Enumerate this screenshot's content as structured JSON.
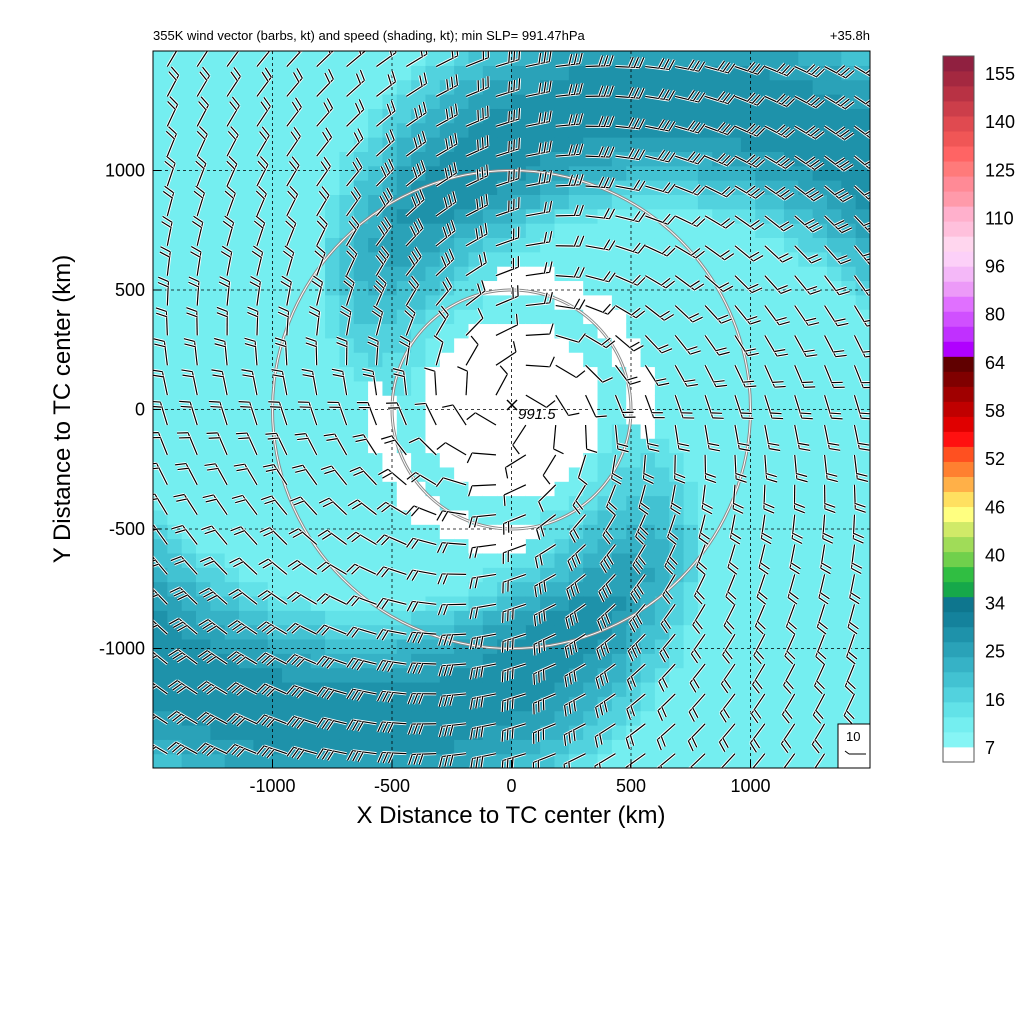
{
  "chart_data": {
    "type": "heatmap",
    "title": "355K wind vector (barbs, kt) and speed (shading, kt); min SLP= 991.47hPa",
    "time_label": "+35.8h",
    "xlabel": "X Distance to TC center (km)",
    "ylabel": "Y Distance to TC center (km)",
    "xlim": [
      -1500,
      1500
    ],
    "ylim": [
      -1500,
      1500
    ],
    "x_ticks": [
      -1000,
      -500,
      0,
      500,
      1000
    ],
    "y_ticks": [
      1000,
      500,
      0,
      -500,
      -1000
    ],
    "x_tick_labels": [
      "-1000",
      "-500",
      "0",
      "500",
      "1000"
    ],
    "y_tick_labels": [
      "1000",
      "500",
      "0",
      "-500",
      "-1000"
    ],
    "grid": true,
    "center_marker": {
      "x": 0,
      "y": 0,
      "label": "991.5"
    },
    "range_rings_km": [
      500,
      1000
    ],
    "reference_barb": {
      "label": "10"
    },
    "colorbar": {
      "tick_labels": [
        "155",
        "140",
        "125",
        "110",
        "96",
        "80",
        "64",
        "58",
        "52",
        "46",
        "40",
        "34",
        "25",
        "16",
        "7"
      ],
      "tick_values": [
        155,
        140,
        125,
        110,
        96,
        80,
        64,
        58,
        52,
        46,
        40,
        34,
        25,
        16,
        7
      ],
      "colors": [
        "#ffffff",
        "#86f5f5",
        "#74eef0",
        "#62e2e8",
        "#52d2de",
        "#42c2d2",
        "#36b2c6",
        "#2aa2b8",
        "#1e92aa",
        "#14829c",
        "#0e768e",
        "#16a84a",
        "#30be42",
        "#70d04c",
        "#a0dc58",
        "#d0ea68",
        "#ffff80",
        "#ffe060",
        "#ffb048",
        "#ff8030",
        "#ff5020",
        "#ff1010",
        "#e00000",
        "#c00000",
        "#a00000",
        "#800000",
        "#600000",
        "#b000ff",
        "#c030ff",
        "#d050ff",
        "#e070ff",
        "#ec9af8",
        "#f4b8f8",
        "#fcd0f8",
        "#ffd6ee",
        "#ffc0dc",
        "#ffb0cc",
        "#ff9aaa",
        "#ff8a96",
        "#ff7a7a",
        "#ff6464",
        "#f05656",
        "#e04a50",
        "#cc3e4a",
        "#b83244",
        "#a42840",
        "#902040"
      ]
    },
    "wind_speed_field_kt": {
      "description": "shading",
      "rmw_inner_km": 540,
      "center_calm_radius_km": 380,
      "spiral_band_peak_kt": 30,
      "background_kt": 12
    }
  }
}
